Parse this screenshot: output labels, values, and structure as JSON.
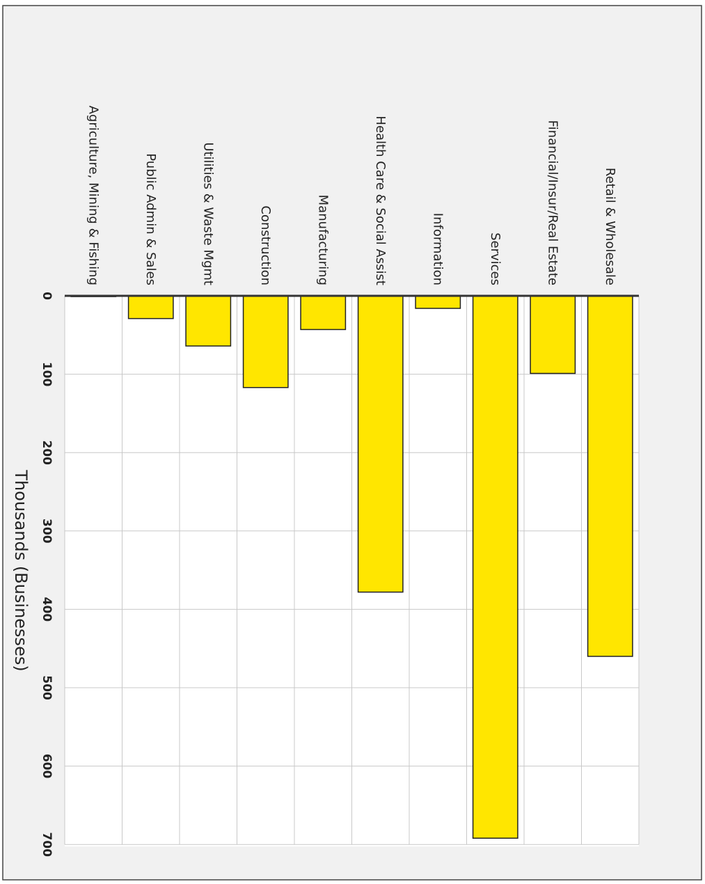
{
  "chart_data": {
    "type": "bar",
    "orientation": "rotated-90-clockwise",
    "categories": [
      "Agriculture, Mining & Fishing",
      "Public Admin & Sales",
      "Utilities & Waste Mgmt",
      "Construction",
      "Manufacturing",
      "Health Care & Social Assist",
      "Information",
      "Services",
      "Financial/Insur/Real Estate",
      "Retail & Wholesale"
    ],
    "values": [
      1,
      29,
      64,
      117,
      43,
      378,
      16,
      692,
      99,
      460
    ],
    "ylabel": "Thousands (Businesses)",
    "yticks": [
      "0",
      "100",
      "200",
      "300",
      "400",
      "500",
      "600",
      "700"
    ],
    "ylim": [
      0,
      700
    ],
    "grid": true,
    "legend": "none"
  },
  "colors": {
    "background": "#f1f1f1",
    "plot_background": "#ffffff",
    "bar_fill": "#ffe600",
    "bar_stroke": "#222222",
    "grid": "#c8c8c8",
    "axis": "#333333",
    "frame": "#444444"
  }
}
